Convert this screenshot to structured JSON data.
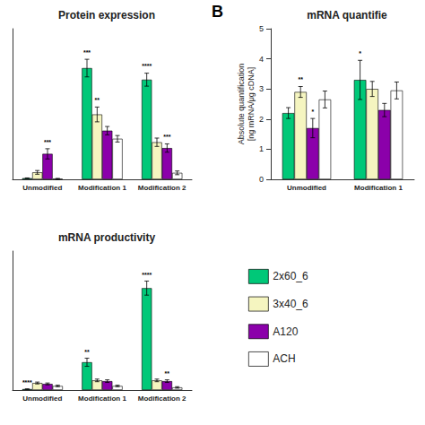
{
  "chart_data": [
    {
      "type": "bar",
      "title": "Protein expression",
      "categories": [
        "Unmodified",
        "Modification 1",
        "Modification 2"
      ],
      "series": [
        {
          "name": "2x60_6",
          "color": "#00C878",
          "values": [
            0.05,
            4.8,
            4.3
          ],
          "errors": [
            0.01,
            0.38,
            0.28
          ],
          "stars": [
            null,
            "***",
            "****"
          ]
        },
        {
          "name": "3x40_6",
          "color": "#F5F5C0",
          "values": [
            0.3,
            2.8,
            1.6
          ],
          "errors": [
            0.08,
            0.32,
            0.18
          ],
          "stars": [
            null,
            "**",
            null
          ]
        },
        {
          "name": "A120",
          "color": "#8B00AA",
          "values": [
            1.1,
            2.1,
            1.35
          ],
          "errors": [
            0.22,
            0.18,
            0.18
          ],
          "stars": [
            "***",
            null,
            "***"
          ]
        },
        {
          "name": "ACH",
          "color": "white",
          "values": [
            0.02,
            1.75,
            0.28
          ],
          "errors": [
            0.02,
            0.14,
            0.08
          ],
          "stars": [
            null,
            null,
            null
          ]
        }
      ],
      "ylim": [
        0,
        6.5
      ],
      "tick_labels": "x",
      "grid": false
    },
    {
      "type": "bar",
      "title": "mRNA quantifie",
      "ylabel": "Absolute quantification\n[ng mRNA/μg cDNA]",
      "annotations": [
        "B"
      ],
      "categories": [
        "Unmodified",
        "Modification 1"
      ],
      "series": [
        {
          "name": "2x60_6",
          "color": "#00C878",
          "values": [
            2.2,
            3.3
          ],
          "errors": [
            0.18,
            0.65
          ],
          "stars": [
            null,
            "*"
          ]
        },
        {
          "name": "3x40_6",
          "color": "#F5F5C0",
          "values": [
            2.9,
            3.0
          ],
          "errors": [
            0.18,
            0.25
          ],
          "stars": [
            "**",
            null
          ]
        },
        {
          "name": "A120",
          "color": "#8B00AA",
          "values": [
            1.7,
            2.3
          ],
          "errors": [
            0.32,
            0.22
          ],
          "stars": [
            "*",
            null
          ]
        },
        {
          "name": "ACH",
          "color": "white",
          "values": [
            2.65,
            2.95
          ],
          "errors": [
            0.28,
            0.28
          ],
          "stars": [
            null,
            null
          ]
        }
      ],
      "ylim": [
        0,
        5
      ],
      "yticks": [
        0,
        1,
        2,
        3,
        4,
        5
      ],
      "grid": false
    },
    {
      "type": "bar",
      "title": "mRNA productivity",
      "categories": [
        "Unmodified",
        "Modification 1",
        "Modification 2"
      ],
      "series": [
        {
          "name": "2x60_6",
          "color": "#00C878",
          "values": [
            0.05,
            1.5,
            5.5
          ],
          "errors": [
            0.01,
            0.22,
            0.38
          ],
          "stars": [
            "****",
            "**",
            "****"
          ]
        },
        {
          "name": "3x40_6",
          "color": "#F5F5C0",
          "values": [
            0.38,
            0.52,
            0.52
          ],
          "errors": [
            0.05,
            0.07,
            0.07
          ],
          "stars": [
            null,
            null,
            null
          ]
        },
        {
          "name": "A120",
          "color": "#8B00AA",
          "values": [
            0.33,
            0.48,
            0.48
          ],
          "errors": [
            0.05,
            0.07,
            0.07
          ],
          "stars": [
            null,
            null,
            "**"
          ]
        },
        {
          "name": "ACH",
          "color": "white",
          "values": [
            0.22,
            0.22,
            0.14
          ],
          "errors": [
            0.04,
            0.04,
            0.04
          ],
          "stars": [
            null,
            null,
            null
          ]
        }
      ],
      "ylim": [
        0,
        7.5
      ],
      "tick_labels": "x",
      "grid": false,
      "legend": "lower right"
    }
  ]
}
